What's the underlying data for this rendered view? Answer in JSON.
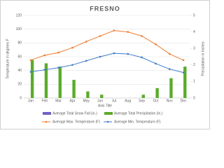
{
  "chart_data": {
    "type": "combo",
    "title": "FRESNO",
    "xlabel": "Axis Title",
    "ylabel": "Temperature in degrees F",
    "y2label": "Precipitation in Inches",
    "categories": [
      "Jan",
      "Feb",
      "Mar",
      "Apr",
      "May",
      "Jun",
      "Jul",
      "Aug",
      "Sep",
      "Oct",
      "Nov",
      "Dec"
    ],
    "ylim": [
      0,
      120
    ],
    "yticks": [
      0,
      20,
      40,
      60,
      80,
      100,
      120
    ],
    "y2lim": [
      0,
      5
    ],
    "y2ticks": [
      0,
      1,
      2,
      3,
      4,
      5
    ],
    "grid": true,
    "legend": "bottom",
    "series": [
      {
        "name": "Average Total Snow Fall (in.)",
        "type": "bar",
        "axis": "y2",
        "color": "#7060c4",
        "values": [
          0,
          0,
          0,
          0,
          0,
          0,
          0,
          0,
          0,
          0,
          0,
          0
        ]
      },
      {
        "name": "Average Total Precipitation (in.)",
        "type": "bar",
        "axis": "y2",
        "color": "#5aab2a",
        "values": [
          2.3,
          2.1,
          1.9,
          1.1,
          0.4,
          0.2,
          0,
          0,
          0.2,
          0.6,
          1.2,
          1.9
        ]
      },
      {
        "name": "Average Max. Temperature (F)",
        "type": "line",
        "color": "#ed7d31",
        "values": [
          55,
          62,
          66,
          73,
          82,
          90,
          98,
          96,
          90,
          78,
          64,
          55
        ]
      },
      {
        "name": "Average Min. Temperature (F)",
        "type": "line",
        "color": "#3d7cc9",
        "values": [
          38,
          41,
          44,
          48,
          54,
          60,
          65,
          64,
          59,
          50,
          42,
          37
        ]
      }
    ]
  }
}
